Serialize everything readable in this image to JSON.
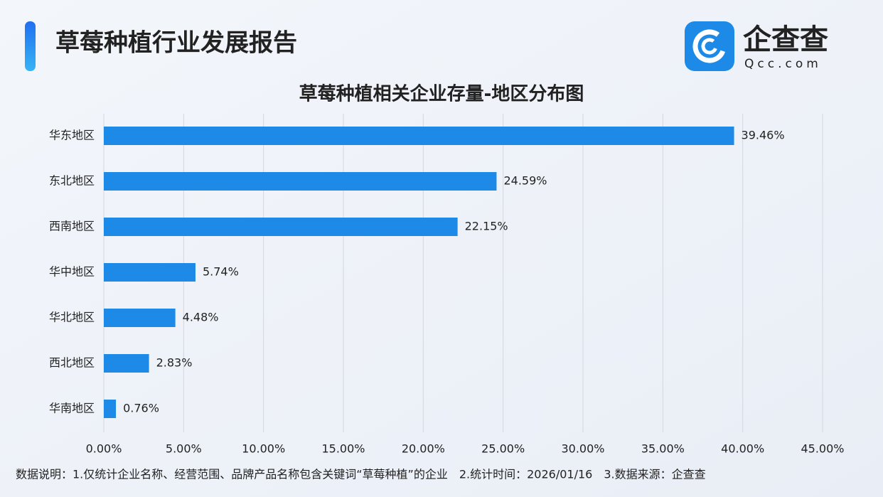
{
  "header": {
    "title": "草莓种植行业发展报告",
    "logo_text": "企查查",
    "logo_sub": "Qcc.com"
  },
  "chart_data": {
    "type": "hbar",
    "title": "草莓种植相关企业存量-地区分布图",
    "categories": [
      "华东地区",
      "东北地区",
      "西南地区",
      "华中地区",
      "华北地区",
      "西北地区",
      "华南地区"
    ],
    "values": [
      39.46,
      24.59,
      22.15,
      5.74,
      4.48,
      2.83,
      0.76
    ],
    "value_labels": [
      "39.46%",
      "24.59%",
      "22.15%",
      "5.74%",
      "4.48%",
      "2.83%",
      "0.76%"
    ],
    "color": "#1c8ae6",
    "xlim": [
      0,
      45
    ],
    "xticks": [
      {
        "value": 0,
        "label": "0.00%"
      },
      {
        "value": 5,
        "label": "5.00%"
      },
      {
        "value": 10,
        "label": "10.00%"
      },
      {
        "value": 15,
        "label": "15.00%"
      },
      {
        "value": 20,
        "label": "20.00%"
      },
      {
        "value": 25,
        "label": "25.00%"
      },
      {
        "value": 30,
        "label": "30.00%"
      },
      {
        "value": 35,
        "label": "35.00%"
      },
      {
        "value": 40,
        "label": "40.00%"
      },
      {
        "value": 45,
        "label": "45.00%"
      }
    ],
    "grid": true
  },
  "footer": {
    "note": "数据说明：1.仅统计企业名称、经营范围、品牌产品名称包含关键词“草莓种植”的企业　2.统计时间：2026/01/16　3.数据来源：企查查"
  }
}
